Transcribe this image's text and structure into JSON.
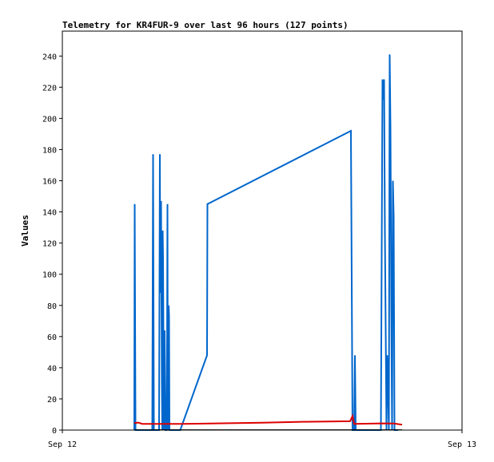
{
  "chart_data": {
    "type": "line",
    "title": "Telemetry for KR4FUR-9 over last 96 hours (127 points)",
    "xlabel": "",
    "ylabel": "Values",
    "ylim": [
      0,
      256
    ],
    "y_ticks": [
      0,
      20,
      40,
      60,
      80,
      100,
      120,
      140,
      160,
      180,
      200,
      220,
      240
    ],
    "x_tick_labels": [
      "Sep 12",
      "Sep 13"
    ],
    "xlim": [
      0,
      1
    ],
    "grid": false,
    "legend": "none",
    "series": [
      {
        "color": "#0066cc",
        "points": [
          [
            0.18,
            0
          ],
          [
            0.181,
            145
          ],
          [
            0.182,
            73
          ],
          [
            0.183,
            0
          ],
          [
            0.225,
            0
          ],
          [
            0.227,
            177
          ],
          [
            0.229,
            0
          ],
          [
            0.242,
            0
          ],
          [
            0.244,
            177
          ],
          [
            0.245,
            88
          ],
          [
            0.247,
            147
          ],
          [
            0.249,
            30
          ],
          [
            0.25,
            0
          ],
          [
            0.251,
            128
          ],
          [
            0.252,
            110
          ],
          [
            0.254,
            0
          ],
          [
            0.256,
            64
          ],
          [
            0.258,
            0
          ],
          [
            0.261,
            0
          ],
          [
            0.262,
            50
          ],
          [
            0.263,
            145
          ],
          [
            0.264,
            0
          ],
          [
            0.266,
            80
          ],
          [
            0.267,
            73
          ],
          [
            0.268,
            0
          ],
          [
            0.295,
            0
          ],
          [
            0.362,
            48
          ],
          [
            0.363,
            145
          ],
          [
            0.722,
            192
          ],
          [
            0.724,
            97
          ],
          [
            0.726,
            0
          ],
          [
            0.73,
            0
          ],
          [
            0.732,
            48
          ],
          [
            0.733,
            25
          ],
          [
            0.734,
            0
          ],
          [
            0.797,
            0
          ],
          [
            0.799,
            112
          ],
          [
            0.801,
            225
          ],
          [
            0.803,
            212
          ],
          [
            0.805,
            225
          ],
          [
            0.807,
            128
          ],
          [
            0.809,
            65
          ],
          [
            0.811,
            0
          ],
          [
            0.813,
            48
          ],
          [
            0.815,
            25
          ],
          [
            0.817,
            0
          ],
          [
            0.819,
            241
          ],
          [
            0.821,
            193
          ],
          [
            0.823,
            80
          ],
          [
            0.825,
            0
          ],
          [
            0.827,
            160
          ],
          [
            0.829,
            137
          ],
          [
            0.831,
            0
          ],
          [
            0.84,
            0
          ]
        ]
      },
      {
        "color": "#dd0000",
        "points": [
          [
            0.18,
            4.5
          ],
          [
            0.19,
            4.8
          ],
          [
            0.2,
            4.0
          ],
          [
            0.3,
            4.0
          ],
          [
            0.5,
            4.7
          ],
          [
            0.6,
            5.3
          ],
          [
            0.72,
            5.7
          ],
          [
            0.726,
            9.0
          ],
          [
            0.73,
            4.0
          ],
          [
            0.8,
            4.3
          ],
          [
            0.83,
            4.2
          ],
          [
            0.85,
            3.5
          ]
        ]
      },
      {
        "color": "#000000",
        "points": [
          [
            0.18,
            0.2
          ],
          [
            0.85,
            0.2
          ]
        ]
      }
    ]
  }
}
